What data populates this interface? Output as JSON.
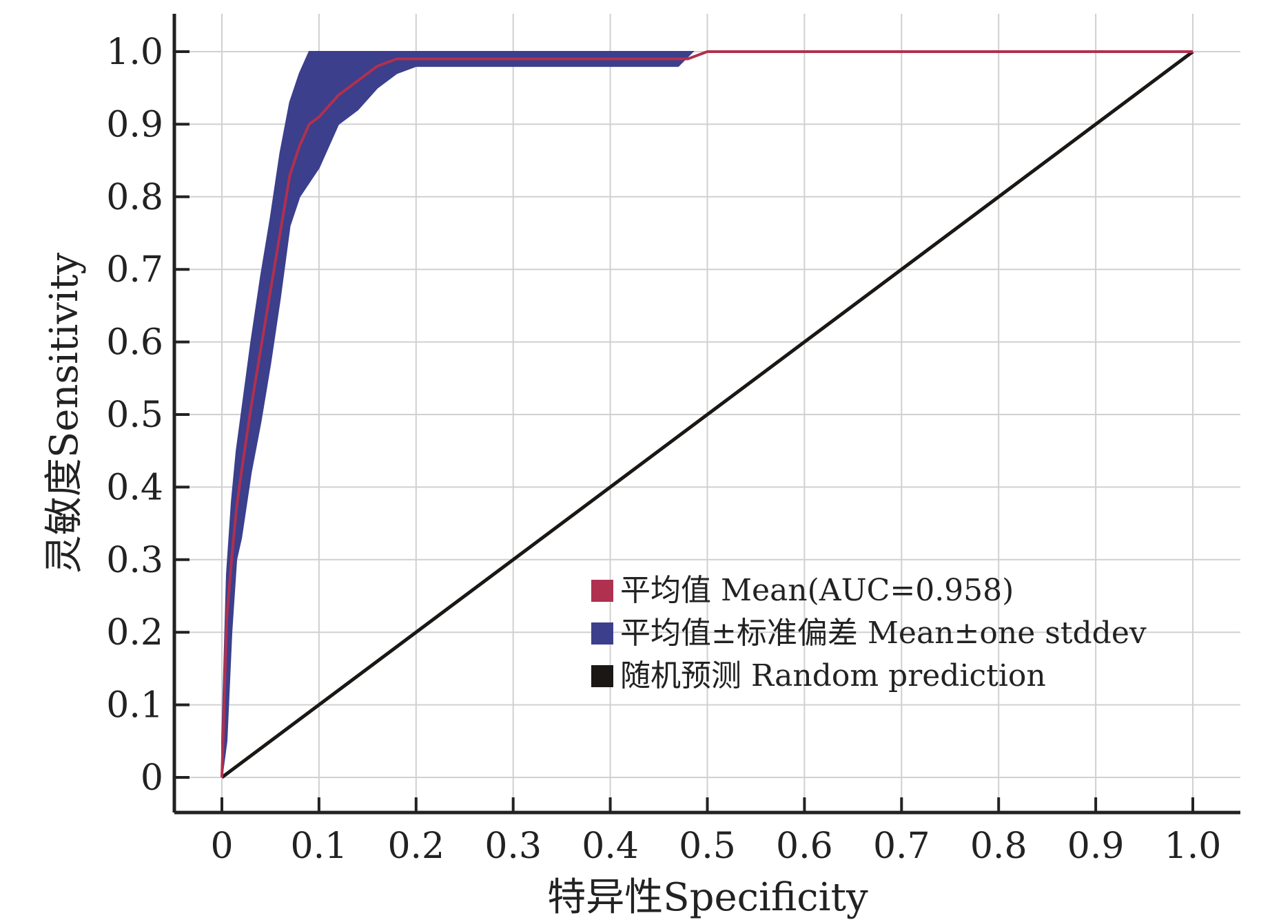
{
  "chart_data": {
    "type": "line",
    "xlabel": "特异性Specificity",
    "ylabel": "灵敏度Sensitivity",
    "xlim": [
      0,
      1.0
    ],
    "ylim": [
      0,
      1.0
    ],
    "grid": true,
    "x_ticks": [
      "0",
      "0.1",
      "0.2",
      "0.3",
      "0.4",
      "0.5",
      "0.6",
      "0.7",
      "0.8",
      "0.9",
      "1.0"
    ],
    "y_ticks": [
      "0",
      "0.1",
      "0.2",
      "0.3",
      "0.4",
      "0.5",
      "0.6",
      "0.7",
      "0.8",
      "0.9",
      "1.0"
    ],
    "legend_position": "lower-right",
    "series": [
      {
        "name": "平均值 Mean(AUC=0.958)",
        "color": "#b0304f",
        "x": [
          0,
          0.005,
          0.01,
          0.015,
          0.02,
          0.03,
          0.04,
          0.05,
          0.06,
          0.07,
          0.08,
          0.09,
          0.1,
          0.12,
          0.14,
          0.16,
          0.18,
          0.2,
          0.3,
          0.4,
          0.48,
          0.5,
          0.6,
          0.8,
          1.0
        ],
        "y": [
          0,
          0.22,
          0.3,
          0.37,
          0.42,
          0.51,
          0.59,
          0.67,
          0.75,
          0.83,
          0.87,
          0.9,
          0.91,
          0.94,
          0.96,
          0.98,
          0.99,
          0.99,
          0.99,
          0.99,
          0.99,
          1.0,
          1.0,
          1.0,
          1.0
        ]
      },
      {
        "name": "平均值±标准偏差 Mean±one stddev",
        "color": "#3b3f8c",
        "x": [
          0,
          0.005,
          0.01,
          0.015,
          0.02,
          0.03,
          0.04,
          0.05,
          0.06,
          0.07,
          0.08,
          0.09,
          0.1,
          0.12,
          0.14,
          0.16,
          0.18,
          0.2,
          0.3,
          0.4,
          0.47,
          0.485
        ],
        "upper": [
          0.05,
          0.28,
          0.38,
          0.45,
          0.5,
          0.6,
          0.69,
          0.77,
          0.86,
          0.93,
          0.97,
          1.0,
          1.0,
          1.0,
          1.0,
          1.0,
          1.0,
          1.0,
          1.0,
          1.0,
          1.0,
          1.0
        ],
        "lower": [
          0,
          0.05,
          0.2,
          0.3,
          0.33,
          0.42,
          0.49,
          0.57,
          0.66,
          0.76,
          0.8,
          0.82,
          0.84,
          0.9,
          0.92,
          0.95,
          0.97,
          0.98,
          0.98,
          0.98,
          0.98,
          1.0
        ]
      },
      {
        "name": "随机预测 Random prediction",
        "color": "#1a1715",
        "x": [
          0,
          1.0
        ],
        "y": [
          0,
          1.0
        ]
      }
    ]
  }
}
